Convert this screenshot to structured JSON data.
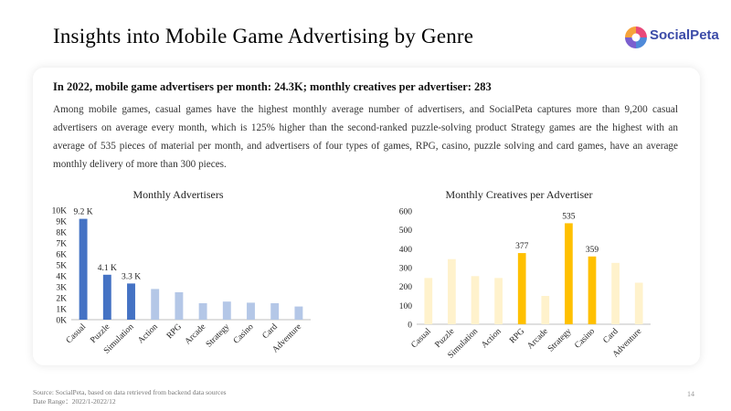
{
  "title": "Insights into Mobile Game Advertising by Genre",
  "logo_text": "SocialPeta",
  "headline": "In 2022, mobile game advertisers per month: 24.3K; monthly creatives per advertiser: 283",
  "body": "Among mobile games, casual games have the highest monthly average number of advertisers, and SocialPeta captures more than 9,200 casual advertisers on average every month, which is 125% higher than the second-ranked puzzle-solving product Strategy games are the highest with an average of 535 pieces of material per month, and advertisers of four types of games, RPG, casino, puzzle solving and card games, have an average monthly delivery of more than 300 pieces.",
  "footer": {
    "source": "Source: SocialPeta, based on data retrieved from backend data sources",
    "date_range": "Date Range：2022/1-2022/12"
  },
  "page_number": "14",
  "colors": {
    "advertisers_highlight": "#4472c4",
    "advertisers_muted": "#b4c7e7",
    "creatives_highlight": "#ffc000",
    "creatives_muted": "#fff2cc"
  },
  "chart_data": [
    {
      "type": "bar",
      "title": "Monthly Advertisers",
      "categories": [
        "Casual",
        "Puzzle",
        "Simulation",
        "Action",
        "RPG",
        "Arcade",
        "Strategy",
        "Casino",
        "Card",
        "Adventure"
      ],
      "values": [
        9200,
        4100,
        3300,
        2800,
        2500,
        1500,
        1650,
        1550,
        1500,
        1200
      ],
      "highlighted": [
        true,
        true,
        true,
        false,
        false,
        false,
        false,
        false,
        false,
        false
      ],
      "data_labels": [
        "9.2 K",
        "4.1 K",
        "3.3 K",
        "",
        "",
        "",
        "",
        "",
        "",
        ""
      ],
      "ylim": [
        0,
        10000
      ],
      "yticks": [
        "0K",
        "1K",
        "2K",
        "3K",
        "4K",
        "5K",
        "6K",
        "7K",
        "8K",
        "9K",
        "10K"
      ],
      "xlabel": "",
      "ylabel": "",
      "grid": false,
      "legend": "none"
    },
    {
      "type": "bar",
      "title": "Monthly Creatives per Advertiser",
      "categories": [
        "Casual",
        "Puzzle",
        "Simulation",
        "Action",
        "RPG",
        "Arcade",
        "Strategy",
        "Casino",
        "Card",
        "Adventure"
      ],
      "values": [
        245,
        345,
        255,
        245,
        377,
        150,
        535,
        359,
        325,
        220
      ],
      "highlighted": [
        false,
        false,
        false,
        false,
        true,
        false,
        true,
        true,
        false,
        false
      ],
      "data_labels": [
        "",
        "",
        "",
        "",
        "377",
        "",
        "535",
        "359",
        "",
        ""
      ],
      "ylim": [
        0,
        600
      ],
      "yticks": [
        "0",
        "100",
        "200",
        "300",
        "400",
        "500",
        "600"
      ],
      "xlabel": "",
      "ylabel": "",
      "grid": false,
      "legend": "none"
    }
  ]
}
